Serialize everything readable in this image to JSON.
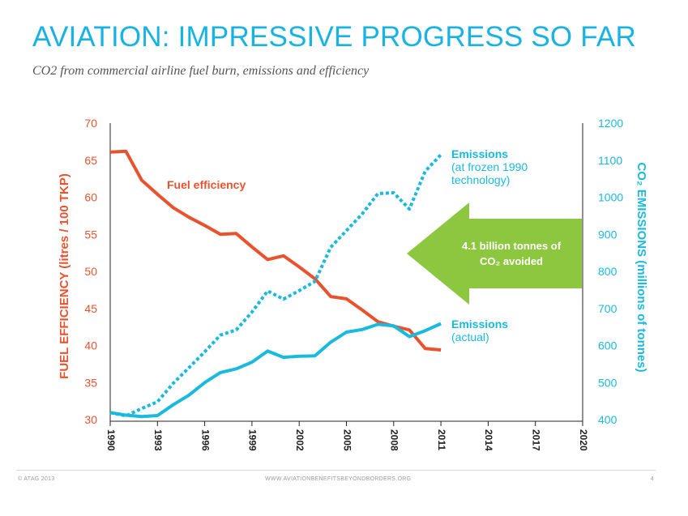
{
  "header": {
    "title": "AVIATION: IMPRESSIVE PROGRESS SO FAR",
    "subtitle": "CO2 from commercial airline fuel burn, emissions and efficiency"
  },
  "footer": {
    "copyright": "© ATAG 2013",
    "url": "WWW.AVIATIONBENEFITSBEYONDBORDERS.ORG",
    "page": "4"
  },
  "colors": {
    "efficiency": "#e8532f",
    "emissions": "#1ab9de",
    "arrow": "#8dc63f",
    "title": "#18b3e3",
    "axis": "#222222"
  },
  "chart_data": {
    "type": "line",
    "title": "",
    "xlabel": "",
    "ylabel_left": "FUEL EFFICIENCY (litres / 100 TKP)",
    "ylabel_right": "CO₂ EMISSIONS (millions of tonnes)",
    "xlim": [
      1990,
      2020
    ],
    "ylim_left": [
      30,
      70
    ],
    "ylim_right": [
      400,
      1200
    ],
    "x_ticks": [
      1990,
      1993,
      1996,
      1999,
      2002,
      2005,
      2008,
      2011,
      2014,
      2017,
      2020
    ],
    "y_ticks_left": [
      30,
      35,
      40,
      45,
      50,
      55,
      60,
      65,
      70
    ],
    "y_ticks_right": [
      400,
      500,
      600,
      700,
      800,
      900,
      1000,
      1100,
      1200
    ],
    "grid": false,
    "series": [
      {
        "name": "Fuel efficiency",
        "axis": "left",
        "style": "solid",
        "x": [
          1990,
          1991,
          1992,
          1993,
          1994,
          1995,
          1996,
          1997,
          1998,
          1999,
          2000,
          2001,
          2002,
          2003,
          2004,
          2005,
          2006,
          2007,
          2008,
          2009,
          2010,
          2011
        ],
        "y": [
          66.1,
          66.2,
          62.3,
          60.4,
          58.6,
          57.3,
          56.2,
          55.0,
          55.1,
          53.3,
          51.6,
          52.1,
          50.6,
          49.0,
          46.6,
          46.3,
          44.8,
          43.2,
          42.6,
          42.1,
          39.6,
          39.4
        ]
      },
      {
        "name": "Emissions (actual)",
        "axis": "right",
        "style": "solid",
        "x": [
          1990,
          1991,
          1992,
          1993,
          1994,
          1995,
          1996,
          1997,
          1998,
          1999,
          2000,
          2001,
          2002,
          2003,
          2004,
          2005,
          2006,
          2007,
          2008,
          2009,
          2010,
          2011
        ],
        "y": [
          419,
          412,
          408,
          411,
          440,
          466,
          500,
          527,
          537,
          555,
          585,
          568,
          571,
          572,
          609,
          636,
          643,
          657,
          653,
          624,
          640,
          659
        ]
      },
      {
        "name": "Emissions (at frozen 1990 technology)",
        "axis": "right",
        "style": "dotted",
        "x": [
          1990,
          1991,
          1992,
          1993,
          1994,
          1995,
          1996,
          1997,
          1998,
          1999,
          2000,
          2001,
          2002,
          2003,
          2004,
          2005,
          2006,
          2007,
          2008,
          2009,
          2010,
          2011
        ],
        "y": [
          419,
          410,
          430,
          448,
          498,
          540,
          583,
          628,
          642,
          690,
          747,
          725,
          748,
          773,
          865,
          910,
          955,
          1010,
          1012,
          968,
          1070,
          1115
        ]
      }
    ],
    "annotations": {
      "efficiency_label": "Fuel efficiency",
      "frozen_label": [
        "Emissions",
        "(at frozen 1990",
        "technology)"
      ],
      "actual_label": [
        "Emissions",
        "(actual)"
      ],
      "arrow_text": [
        "4.1 billion tonnes of",
        "CO₂ avoided"
      ]
    }
  }
}
